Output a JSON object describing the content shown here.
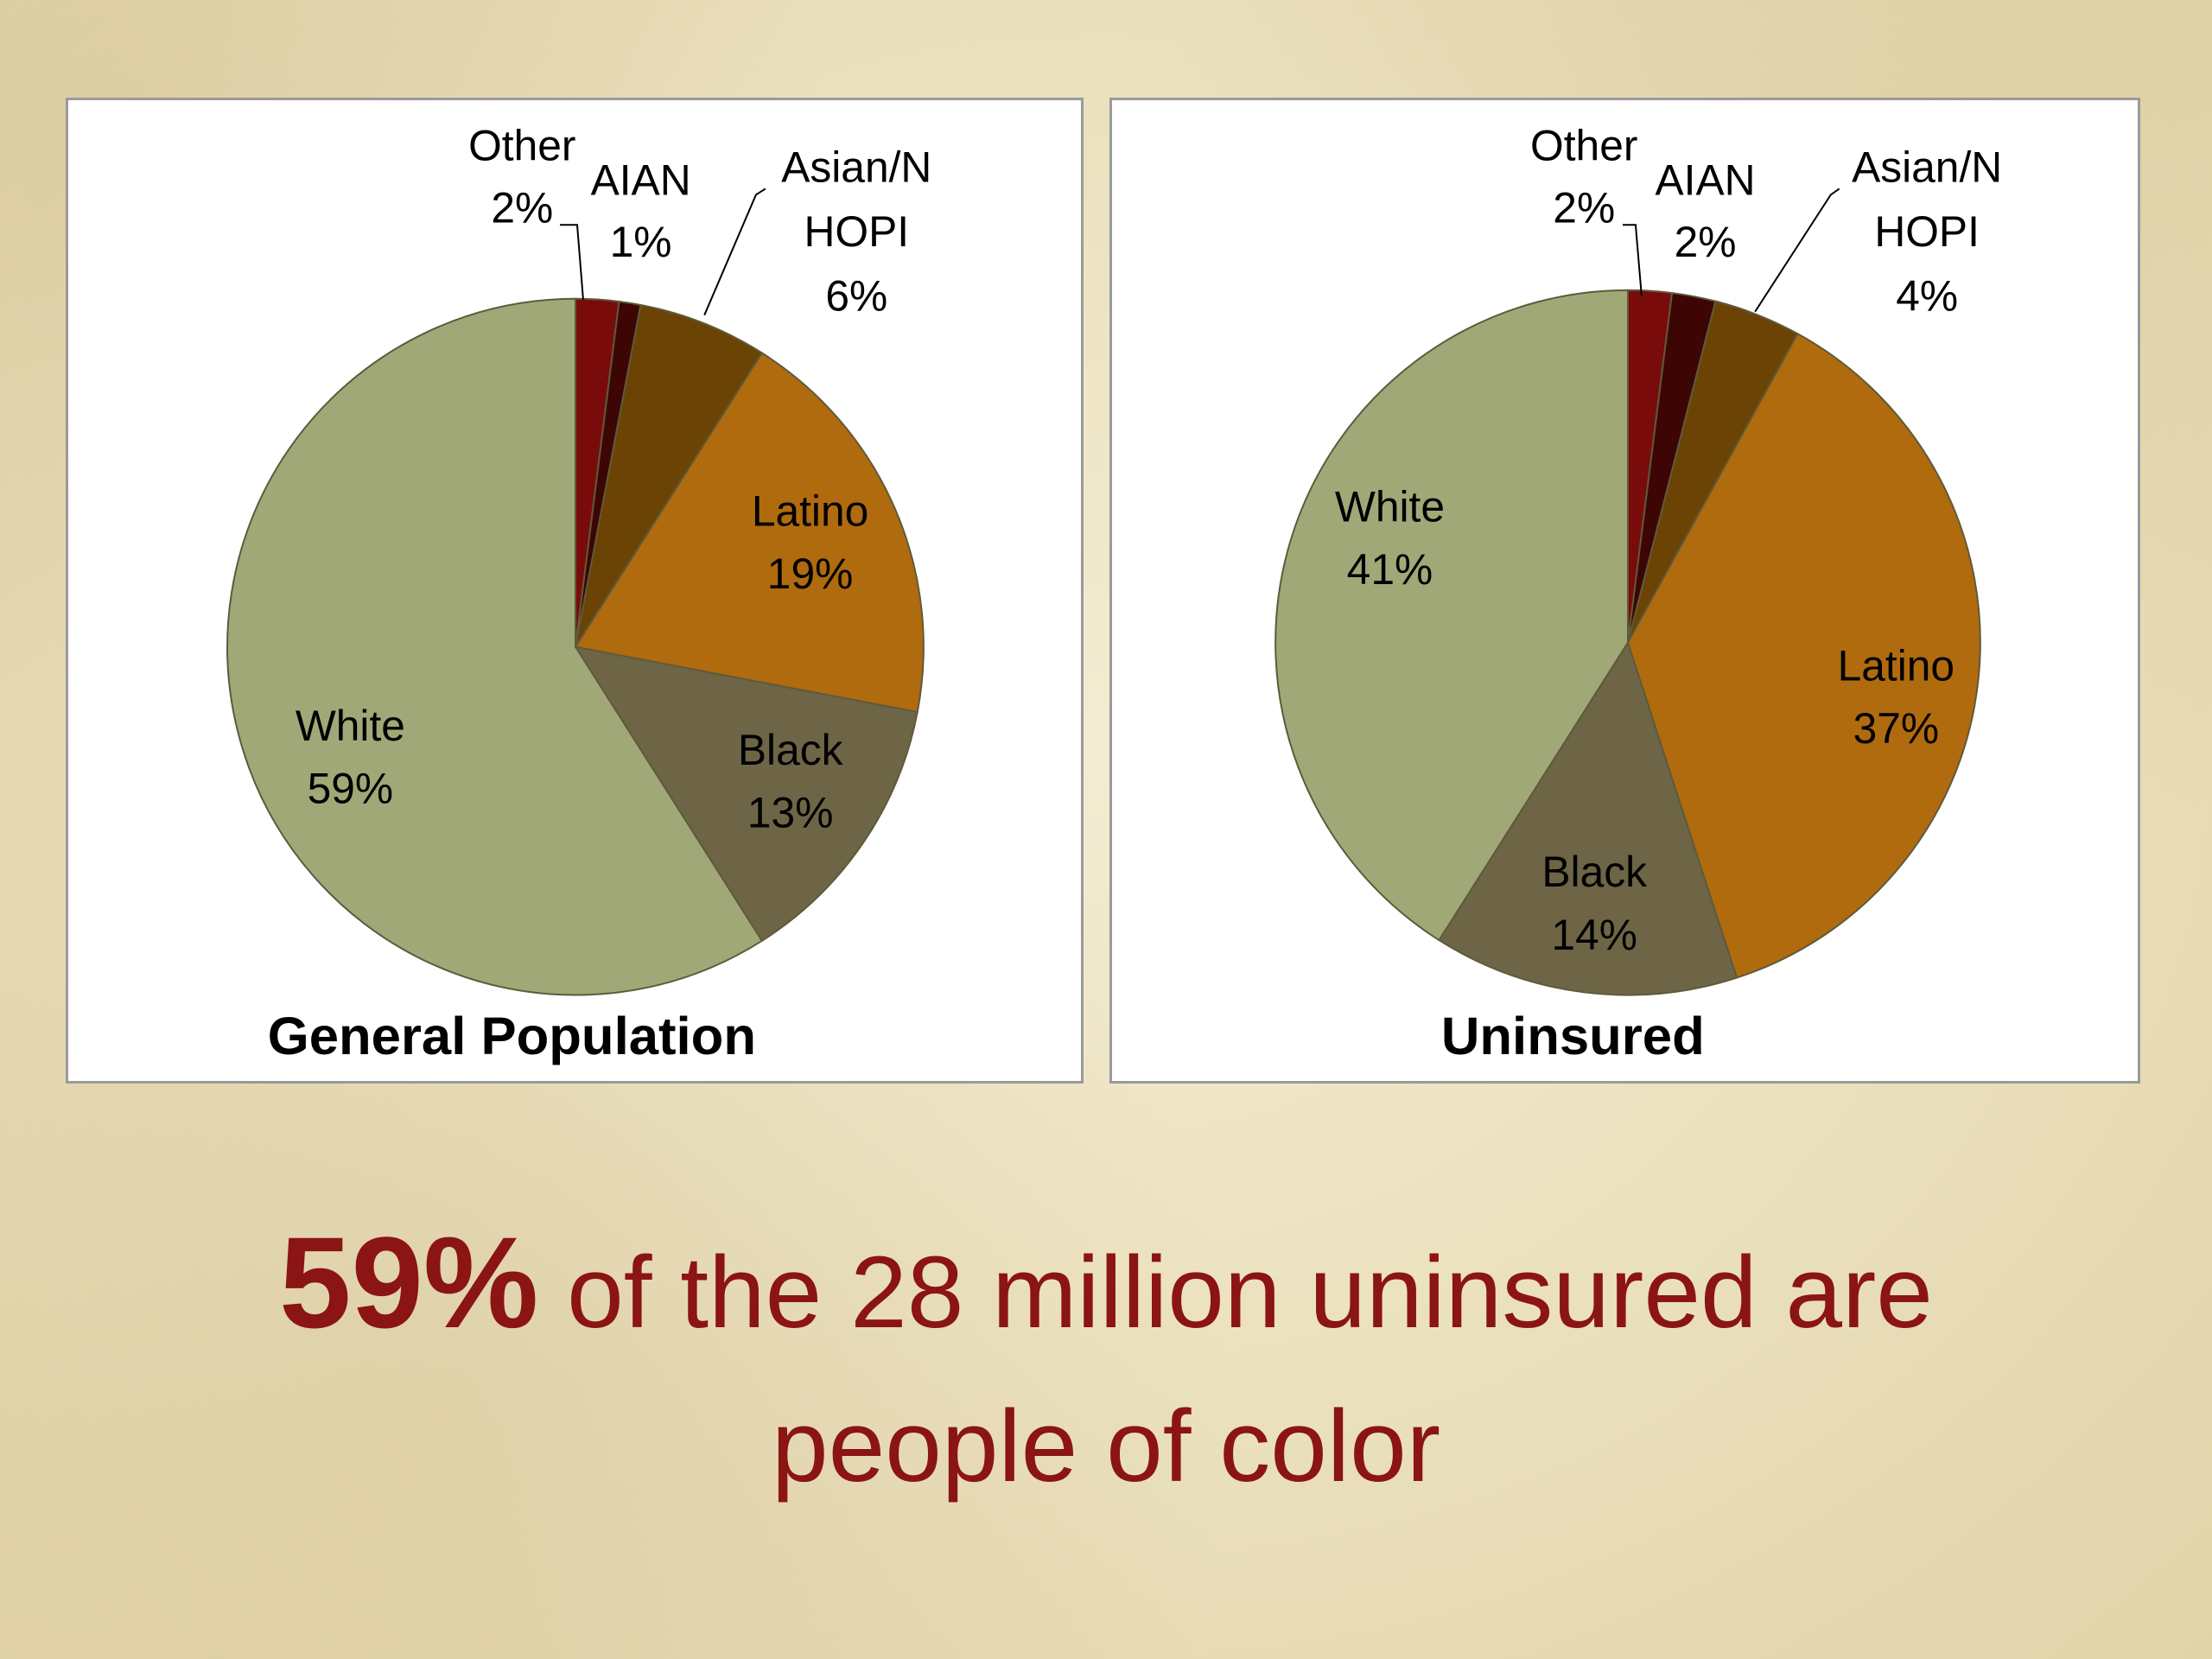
{
  "chart_data": [
    {
      "type": "pie",
      "title": "General Population",
      "slices": [
        {
          "label": "Other",
          "value": 2,
          "color": "#7a0b0b"
        },
        {
          "label": "AIAN",
          "value": 1,
          "color": "#3e0505"
        },
        {
          "label": "Asian/N HOPI",
          "value": 6,
          "color": "#6b4405"
        },
        {
          "label": "Latino",
          "value": 19,
          "color": "#b06b0e"
        },
        {
          "label": "Black",
          "value": 13,
          "color": "#6e6546"
        },
        {
          "label": "White",
          "value": 59,
          "color": "#a1a877"
        }
      ]
    },
    {
      "type": "pie",
      "title": "Uninsured",
      "slices": [
        {
          "label": "Other",
          "value": 2,
          "color": "#7a0b0b"
        },
        {
          "label": "AIAN",
          "value": 2,
          "color": "#3e0505"
        },
        {
          "label": "Asian/N HOPI",
          "value": 4,
          "color": "#6b4405"
        },
        {
          "label": "Latino",
          "value": 37,
          "color": "#b06b0e"
        },
        {
          "label": "Black",
          "value": 14,
          "color": "#6e6546"
        },
        {
          "label": "White",
          "value": 41,
          "color": "#a1a877"
        }
      ]
    }
  ],
  "headline": {
    "emphasis": "59%",
    "line1_rest": " of the 28 million uninsured are",
    "line2": "people of color"
  }
}
